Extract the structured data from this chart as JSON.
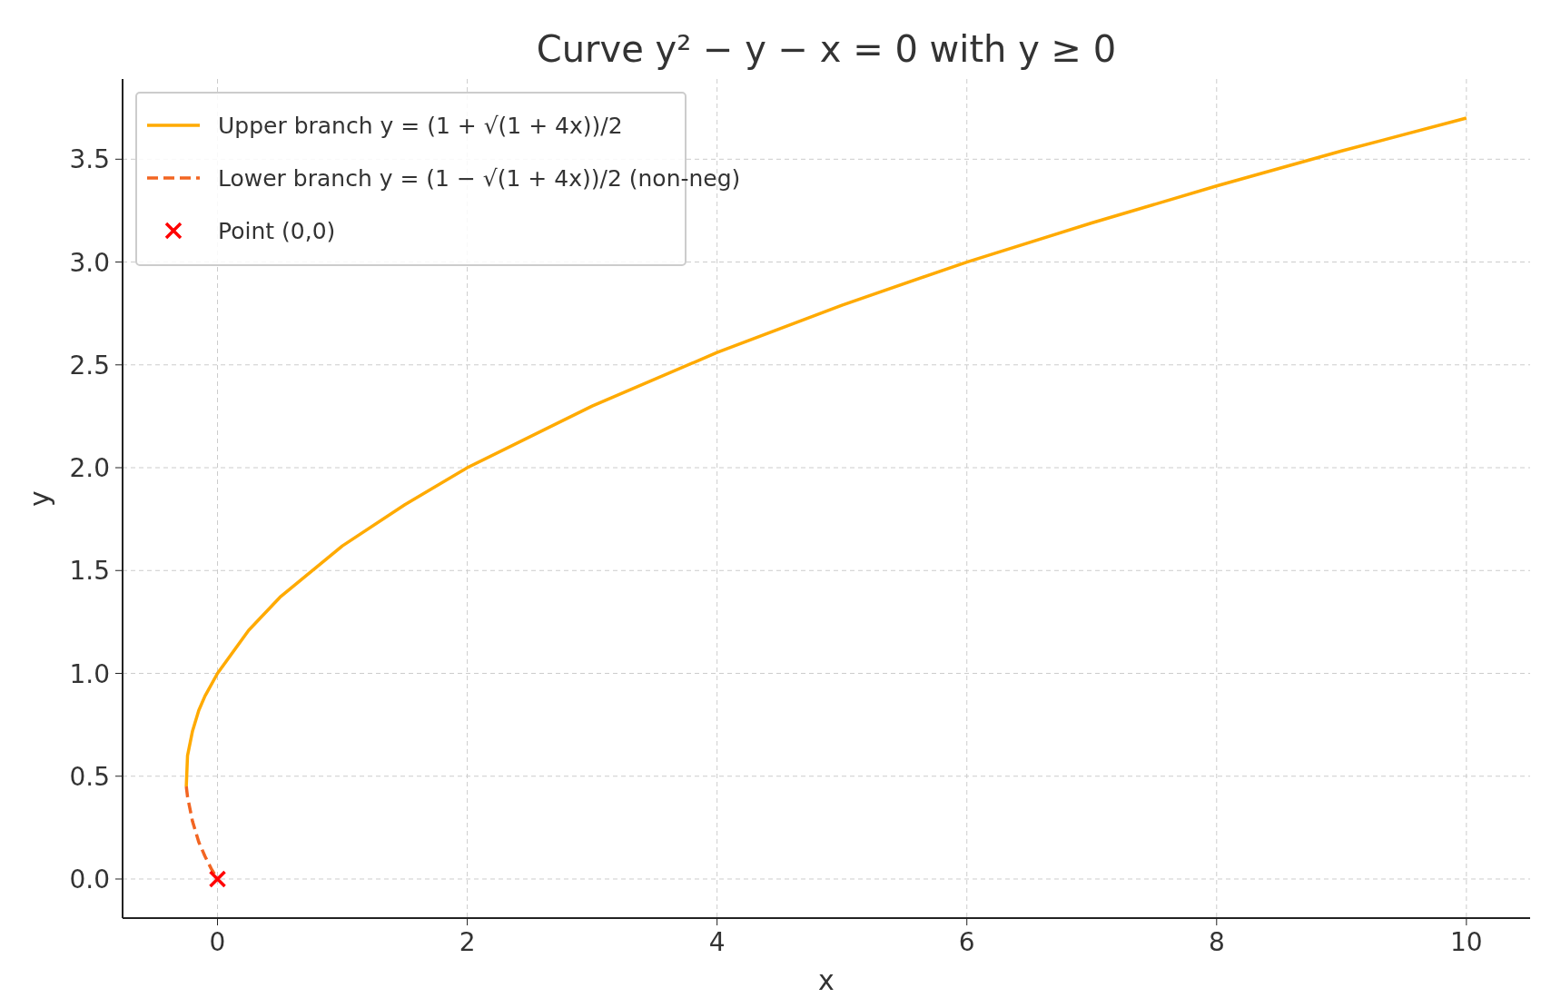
{
  "chart_data": {
    "type": "line",
    "title": "Curve y² − y − x = 0 with y ≥ 0",
    "xlabel": "x",
    "ylabel": "y",
    "xlim": [
      -0.76,
      10.51
    ],
    "ylim": [
      -0.19,
      3.89
    ],
    "xticks": [
      0,
      2,
      4,
      6,
      8,
      10
    ],
    "yticks": [
      {
        "value": 0,
        "label": "0.0"
      },
      {
        "value": 0.5,
        "label": "0.5"
      },
      {
        "value": 1,
        "label": "1.0"
      },
      {
        "value": 1.5,
        "label": "1.5"
      },
      {
        "value": 2,
        "label": "2.0"
      },
      {
        "value": 2.5,
        "label": "2.5"
      },
      {
        "value": 3,
        "label": "3.0"
      },
      {
        "value": 3.5,
        "label": "3.5"
      }
    ],
    "grid": true,
    "legend": "top left",
    "series": [
      {
        "name": "Upper branch y = (1 + √(1 + 4x))/2",
        "type": "line",
        "color": "#ffaa00",
        "line_style": "solid",
        "marker": "none",
        "x": [
          -0.25,
          -0.24,
          -0.2,
          -0.15,
          -0.1,
          0,
          0.25,
          0.5,
          1,
          1.5,
          2,
          3,
          4,
          5,
          6,
          7,
          8,
          9,
          10
        ],
        "values": [
          0.45,
          0.6,
          0.72,
          0.82,
          0.89,
          1,
          1.21,
          1.37,
          1.62,
          1.82,
          2,
          2.3,
          2.56,
          2.79,
          3,
          3.19,
          3.37,
          3.54,
          3.7
        ]
      },
      {
        "name": "Lower branch y = (1 − √(1 + 4x))/2 (non-neg)",
        "type": "line",
        "color": "#f26522",
        "line_style": "dashed",
        "marker": "none",
        "x": [
          -0.25,
          -0.24,
          -0.2,
          -0.15,
          -0.1,
          -0.05,
          0
        ],
        "values": [
          0.45,
          0.4,
          0.28,
          0.18,
          0.11,
          0.05,
          0
        ]
      },
      {
        "name": "Point (0,0)",
        "type": "scatter",
        "color": "#ff0000",
        "marker": "cross",
        "x": [
          0
        ],
        "values": [
          0
        ]
      }
    ]
  }
}
